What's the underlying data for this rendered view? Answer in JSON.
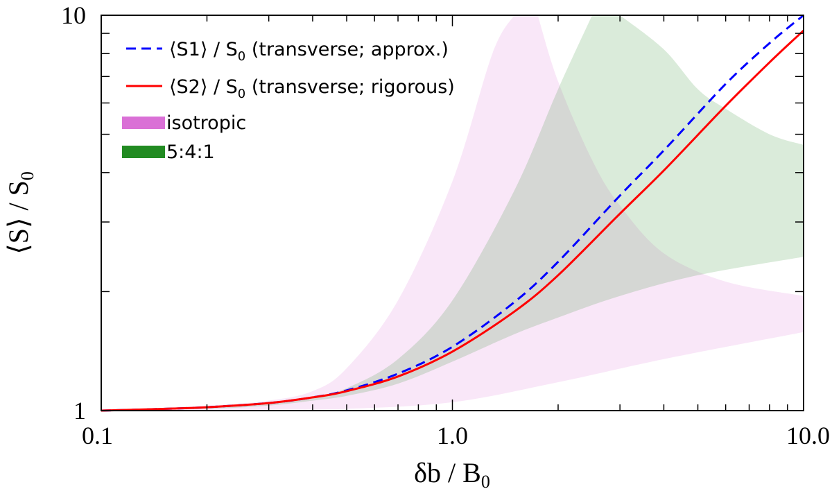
{
  "chart_data": {
    "type": "line",
    "xscale": "log",
    "yscale": "log",
    "xlim": [
      0.1,
      10.0
    ],
    "ylim": [
      1,
      10
    ],
    "xlabel": {
      "pre": "δb / B",
      "sub": "0"
    },
    "ylabel": {
      "pre": "⟨S⟩ / S",
      "sub": "0"
    },
    "x_tick_labels": [
      "0.1",
      "1.0",
      "10.0"
    ],
    "y_tick_labels": [
      "1",
      "10"
    ],
    "x_tick_values": [
      0.1,
      1.0,
      10.0
    ],
    "y_tick_values": [
      1,
      10
    ],
    "series": [
      {
        "name": "S1",
        "legend": {
          "pre": "⟨S1⟩ / S",
          "sub": "0",
          "post": " (transverse; approx.)"
        },
        "style": "dashed",
        "color": "#0000ff",
        "x": [
          0.1,
          0.15,
          0.2,
          0.3,
          0.4,
          0.5,
          0.7,
          1.0,
          1.5,
          2.0,
          3.0,
          4.0,
          6.0,
          8.0,
          10.0
        ],
        "y": [
          1.0,
          1.01,
          1.02,
          1.045,
          1.08,
          1.125,
          1.24,
          1.45,
          1.88,
          2.38,
          3.5,
          4.55,
          6.7,
          8.5,
          10.0
        ]
      },
      {
        "name": "S2",
        "legend": {
          "pre": "⟨S2⟩ / S",
          "sub": "0",
          "post": " (transverse; rigorous)"
        },
        "style": "solid",
        "color": "#ff0000",
        "x": [
          0.1,
          0.15,
          0.2,
          0.3,
          0.4,
          0.5,
          0.7,
          1.0,
          1.5,
          2.0,
          3.0,
          4.0,
          6.0,
          8.0,
          10.0
        ],
        "y": [
          1.0,
          1.01,
          1.02,
          1.045,
          1.08,
          1.12,
          1.22,
          1.41,
          1.78,
          2.2,
          3.15,
          4.05,
          5.9,
          7.6,
          9.15
        ]
      }
    ],
    "bands": [
      {
        "name": "isotropic",
        "label": "isotropic",
        "color": "#da70d6",
        "fill": "#f3dff3",
        "x": [
          0.1,
          0.2,
          0.3,
          0.4,
          0.5,
          0.7,
          1.0,
          1.3,
          1.5,
          2.0,
          3.0,
          5.0,
          10.0
        ],
        "upper": [
          1.0,
          1.03,
          1.06,
          1.12,
          1.28,
          1.9,
          3.8,
          8.0,
          10.0,
          10.0,
          10.0,
          10.0,
          10.0
        ],
        "upper_x": [
          0.1,
          0.2,
          0.3,
          0.4,
          0.5,
          0.7,
          1.0,
          1.3,
          1.5
        ],
        "upper_y": [
          1.0,
          1.03,
          1.06,
          1.12,
          1.28,
          1.9,
          3.8,
          8.0,
          10.0
        ],
        "lower_x": [
          0.1,
          0.3,
          0.5,
          1.0,
          2.0,
          4.0,
          10.0
        ],
        "lower_y": [
          1.0,
          1.005,
          1.01,
          1.05,
          1.18,
          1.35,
          1.58
        ],
        "right_upper_x": [
          1.75,
          2.0,
          2.5,
          3.0,
          4.0,
          6.0,
          10.0
        ],
        "right_upper_y": [
          10.0,
          6.8,
          4.3,
          3.3,
          2.5,
          2.12,
          1.95
        ]
      },
      {
        "name": "5:4:1",
        "label": "5:4:1",
        "color": "#228b22",
        "fill": "#dbeedb",
        "upper_x": [
          0.1,
          0.2,
          0.3,
          0.4,
          0.5,
          0.7,
          1.0,
          1.5,
          2.0,
          2.5
        ],
        "upper_y": [
          1.0,
          1.02,
          1.04,
          1.08,
          1.14,
          1.35,
          1.9,
          3.6,
          6.5,
          10.0
        ],
        "lower_x": [
          0.1,
          0.2,
          0.3,
          0.4,
          0.5,
          0.7,
          1.0,
          1.5,
          2.0,
          3.0,
          5.0,
          10.0
        ],
        "lower_y": [
          1.0,
          1.01,
          1.03,
          1.06,
          1.09,
          1.17,
          1.33,
          1.56,
          1.72,
          1.95,
          2.2,
          2.45
        ],
        "right_upper_x": [
          3.0,
          4.0,
          5.0,
          6.0,
          8.0,
          10.0
        ],
        "right_upper_y": [
          10.0,
          8.2,
          6.5,
          5.8,
          5.0,
          4.7
        ]
      }
    ],
    "legend_position": "top-left"
  }
}
